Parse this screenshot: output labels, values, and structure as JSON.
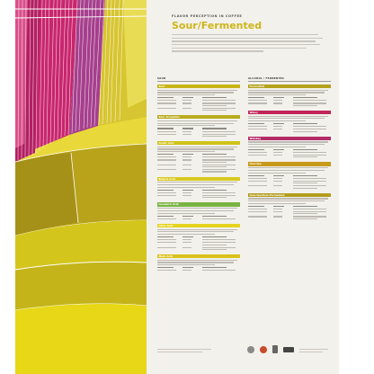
{
  "poster": {
    "kicker": "FLAVOR PERCEPTION IN COFFEE",
    "title_main": "Sour",
    "title_slash": "/",
    "title_second": "Fermented",
    "col_left_head": "SOUR",
    "col_right_head": "ALCOHOL / FERMENTED"
  },
  "sections_left": [
    {
      "key": "sour",
      "label": "Sour",
      "color": "#c8b417",
      "rows": 3
    },
    {
      "key": "sour_aromatics",
      "label": "Sour Aromatics",
      "color": "#b9ab1e",
      "rows": 2
    },
    {
      "key": "acetic_acid",
      "label": "Acetic Acid",
      "color": "#cfc319",
      "rows": 4
    },
    {
      "key": "butyric_acid",
      "label": "Butyric Acid",
      "color": "#d9c91c",
      "rows": 2
    },
    {
      "key": "isovaleric_acid",
      "label": "Isovaleric Acid",
      "color": "#79b443",
      "rows": 1
    },
    {
      "key": "citric_acid",
      "label": "Citric Acid",
      "color": "#e6d31f",
      "rows": 3
    },
    {
      "key": "malic_acid",
      "label": "Malic Acid",
      "color": "#d9c21a",
      "rows": 1
    }
  ],
  "sections_right": [
    {
      "key": "fermented",
      "label": "Fermented",
      "color": "#b5a21b",
      "rows": 2
    },
    {
      "key": "winey",
      "label": "Winey",
      "color": "#c1245b",
      "rows": 2
    },
    {
      "key": "whiskey",
      "label": "Whiskey",
      "color": "#b32c66",
      "rows": 2
    },
    {
      "key": "overripe",
      "label": "Overripe",
      "color": "#c79a1a",
      "rows": 3
    },
    {
      "key": "overripe_fermented",
      "label": "Overripe/Over-Fermented",
      "color": "#b39d1b",
      "rows": 3
    }
  ]
}
